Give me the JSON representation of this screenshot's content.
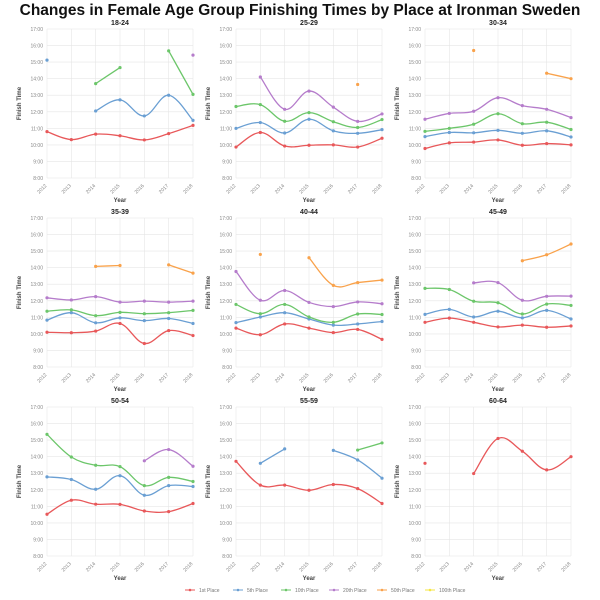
{
  "title": "Changes in Female Age Group Finishing Times by Place at Ironman Sweden",
  "legend": [
    {
      "name": "1st Place",
      "color": "#e8585a"
    },
    {
      "name": "5th Place",
      "color": "#6a9fd3"
    },
    {
      "name": "10th Place",
      "color": "#6cc66a"
    },
    {
      "name": "20th Place",
      "color": "#b57ccb"
    },
    {
      "name": "50th Place",
      "color": "#f9a24b"
    },
    {
      "name": "100th Place",
      "color": "#f5e642"
    }
  ],
  "chart_data": [
    {
      "type": "line",
      "title": "18-24",
      "xlabel": "Year",
      "ylabel": "Finish Time",
      "x": [
        2012,
        2013,
        2014,
        2015,
        2016,
        2017,
        2018
      ],
      "ylim": [
        8,
        17
      ],
      "yticks": [
        "8:00",
        "9:00",
        "10:00",
        "11:00",
        "12:00",
        "13:00",
        "14:00",
        "15:00",
        "16:00",
        "17:00"
      ],
      "series": [
        {
          "name": "1st Place",
          "values": [
            10.8,
            10.32,
            10.65,
            10.55,
            10.3,
            10.68,
            11.18
          ]
        },
        {
          "name": "5th Place",
          "values": [
            15.12,
            null,
            12.05,
            12.72,
            11.75,
            13.0,
            11.48
          ]
        },
        {
          "name": "10th Place",
          "values": [
            null,
            null,
            13.7,
            14.67,
            null,
            15.68,
            13.05
          ]
        },
        {
          "name": "20th Place",
          "values": [
            null,
            null,
            null,
            null,
            null,
            null,
            15.42
          ]
        },
        {
          "name": "50th Place",
          "values": [
            null,
            null,
            null,
            null,
            null,
            null,
            null
          ]
        },
        {
          "name": "100th Place",
          "values": [
            null,
            null,
            null,
            null,
            null,
            null,
            null
          ]
        }
      ]
    },
    {
      "type": "line",
      "title": "25-29",
      "xlabel": "Year",
      "ylabel": "Finish Time",
      "x": [
        2012,
        2013,
        2014,
        2015,
        2016,
        2017,
        2018
      ],
      "ylim": [
        8,
        17
      ],
      "yticks": [
        "8:00",
        "9:00",
        "10:00",
        "11:00",
        "12:00",
        "13:00",
        "14:00",
        "15:00",
        "16:00",
        "17:00"
      ],
      "series": [
        {
          "name": "1st Place",
          "values": [
            9.87,
            10.75,
            9.93,
            9.98,
            10.0,
            9.87,
            10.4
          ]
        },
        {
          "name": "5th Place",
          "values": [
            11.0,
            11.35,
            10.72,
            11.55,
            10.85,
            10.7,
            10.92
          ]
        },
        {
          "name": "10th Place",
          "values": [
            12.32,
            12.43,
            11.43,
            11.95,
            11.4,
            11.05,
            11.53
          ]
        },
        {
          "name": "20th Place",
          "values": [
            null,
            14.1,
            12.15,
            13.25,
            12.28,
            11.42,
            11.87
          ]
        },
        {
          "name": "50th Place",
          "values": [
            null,
            null,
            null,
            null,
            null,
            13.65,
            null
          ]
        },
        {
          "name": "100th Place",
          "values": [
            null,
            null,
            null,
            null,
            null,
            null,
            null
          ]
        }
      ]
    },
    {
      "type": "line",
      "title": "30-34",
      "xlabel": "Year",
      "ylabel": "Finish Time",
      "x": [
        2012,
        2013,
        2014,
        2015,
        2016,
        2017,
        2018
      ],
      "ylim": [
        8,
        17
      ],
      "yticks": [
        "8:00",
        "9:00",
        "10:00",
        "11:00",
        "12:00",
        "13:00",
        "14:00",
        "15:00",
        "16:00",
        "17:00"
      ],
      "series": [
        {
          "name": "1st Place",
          "values": [
            9.78,
            10.12,
            10.17,
            10.3,
            9.98,
            10.08,
            10.0
          ]
        },
        {
          "name": "5th Place",
          "values": [
            10.5,
            10.75,
            10.73,
            10.88,
            10.7,
            10.85,
            10.48
          ]
        },
        {
          "name": "10th Place",
          "values": [
            10.82,
            11.0,
            11.25,
            11.88,
            11.28,
            11.37,
            10.93
          ]
        },
        {
          "name": "20th Place",
          "values": [
            11.55,
            11.9,
            12.03,
            12.85,
            12.37,
            12.15,
            11.65
          ]
        },
        {
          "name": "50th Place",
          "values": [
            null,
            null,
            15.7,
            null,
            null,
            14.33,
            14.0
          ]
        },
        {
          "name": "100th Place",
          "values": [
            null,
            null,
            null,
            null,
            null,
            null,
            null
          ]
        }
      ]
    },
    {
      "type": "line",
      "title": "35-39",
      "xlabel": "Year",
      "ylabel": "Finish Time",
      "x": [
        2012,
        2013,
        2014,
        2015,
        2016,
        2017,
        2018
      ],
      "ylim": [
        8,
        17
      ],
      "yticks": [
        "8:00",
        "9:00",
        "10:00",
        "11:00",
        "12:00",
        "13:00",
        "14:00",
        "15:00",
        "16:00",
        "17:00"
      ],
      "series": [
        {
          "name": "1st Place",
          "values": [
            10.1,
            10.07,
            10.17,
            10.63,
            9.42,
            10.2,
            9.9
          ]
        },
        {
          "name": "5th Place",
          "values": [
            10.83,
            11.28,
            10.67,
            10.97,
            10.8,
            10.93,
            10.63
          ]
        },
        {
          "name": "10th Place",
          "values": [
            11.37,
            11.45,
            11.1,
            11.3,
            11.22,
            11.28,
            11.42
          ]
        },
        {
          "name": "20th Place",
          "values": [
            12.18,
            12.05,
            12.25,
            11.92,
            11.98,
            11.92,
            11.98
          ]
        },
        {
          "name": "50th Place",
          "values": [
            null,
            null,
            14.08,
            14.13,
            null,
            14.17,
            13.67
          ]
        },
        {
          "name": "100th Place",
          "values": [
            null,
            null,
            null,
            null,
            null,
            null,
            null
          ]
        }
      ]
    },
    {
      "type": "line",
      "title": "40-44",
      "xlabel": "Year",
      "ylabel": "Finish Time",
      "x": [
        2012,
        2013,
        2014,
        2015,
        2016,
        2017,
        2018
      ],
      "ylim": [
        8,
        17
      ],
      "yticks": [
        "8:00",
        "9:00",
        "10:00",
        "11:00",
        "12:00",
        "13:00",
        "14:00",
        "15:00",
        "16:00",
        "17:00"
      ],
      "series": [
        {
          "name": "1st Place",
          "values": [
            10.35,
            9.95,
            10.6,
            10.35,
            10.08,
            10.27,
            9.67
          ]
        },
        {
          "name": "5th Place",
          "values": [
            10.68,
            11.02,
            11.28,
            10.9,
            10.53,
            10.6,
            10.75
          ]
        },
        {
          "name": "10th Place",
          "values": [
            11.78,
            11.22,
            11.78,
            11.02,
            10.7,
            11.2,
            11.17
          ]
        },
        {
          "name": "20th Place",
          "values": [
            13.77,
            12.03,
            12.62,
            11.9,
            11.65,
            11.93,
            11.82
          ]
        },
        {
          "name": "50th Place",
          "values": [
            null,
            14.8,
            null,
            14.6,
            12.93,
            13.1,
            13.25
          ]
        },
        {
          "name": "100th Place",
          "values": [
            null,
            null,
            null,
            null,
            null,
            null,
            null
          ]
        }
      ]
    },
    {
      "type": "line",
      "title": "45-49",
      "xlabel": "Year",
      "ylabel": "Finish Time",
      "x": [
        2012,
        2013,
        2014,
        2015,
        2016,
        2017,
        2018
      ],
      "ylim": [
        8,
        17
      ],
      "yticks": [
        "8:00",
        "9:00",
        "10:00",
        "11:00",
        "12:00",
        "13:00",
        "14:00",
        "15:00",
        "16:00",
        "17:00"
      ],
      "series": [
        {
          "name": "1st Place",
          "values": [
            10.7,
            10.95,
            10.7,
            10.42,
            10.53,
            10.4,
            10.48
          ]
        },
        {
          "name": "5th Place",
          "values": [
            11.18,
            11.48,
            11.02,
            11.37,
            10.97,
            11.42,
            10.9
          ]
        },
        {
          "name": "10th Place",
          "values": [
            12.75,
            12.68,
            11.97,
            11.88,
            11.2,
            11.8,
            11.72
          ]
        },
        {
          "name": "20th Place",
          "values": [
            null,
            null,
            13.08,
            13.1,
            12.03,
            12.27,
            12.28
          ]
        },
        {
          "name": "50th Place",
          "values": [
            null,
            null,
            null,
            null,
            14.42,
            14.78,
            15.43
          ]
        },
        {
          "name": "100th Place",
          "values": [
            null,
            null,
            null,
            null,
            null,
            null,
            null
          ]
        }
      ]
    },
    {
      "type": "line",
      "title": "50-54",
      "xlabel": "Year",
      "ylabel": "Finish Time",
      "x": [
        2012,
        2013,
        2014,
        2015,
        2016,
        2017,
        2018
      ],
      "ylim": [
        8,
        17
      ],
      "yticks": [
        "8:00",
        "9:00",
        "10:00",
        "11:00",
        "12:00",
        "13:00",
        "14:00",
        "15:00",
        "16:00",
        "17:00"
      ],
      "series": [
        {
          "name": "1st Place",
          "values": [
            10.52,
            11.37,
            11.13,
            11.12,
            10.72,
            10.68,
            11.17
          ]
        },
        {
          "name": "5th Place",
          "values": [
            12.78,
            12.62,
            12.03,
            12.85,
            11.67,
            12.25,
            12.2
          ]
        },
        {
          "name": "10th Place",
          "values": [
            15.35,
            13.98,
            13.48,
            13.4,
            12.25,
            12.75,
            12.5
          ]
        },
        {
          "name": "20th Place",
          "values": [
            null,
            null,
            null,
            null,
            13.75,
            14.43,
            13.42
          ]
        },
        {
          "name": "50th Place",
          "values": [
            null,
            null,
            null,
            null,
            null,
            null,
            null
          ]
        },
        {
          "name": "100th Place",
          "values": [
            null,
            null,
            null,
            null,
            null,
            null,
            null
          ]
        }
      ]
    },
    {
      "type": "line",
      "title": "55-59",
      "xlabel": "Year",
      "ylabel": "Finish Time",
      "x": [
        2012,
        2013,
        2014,
        2015,
        2016,
        2017,
        2018
      ],
      "ylim": [
        8,
        17
      ],
      "yticks": [
        "8:00",
        "9:00",
        "10:00",
        "11:00",
        "12:00",
        "13:00",
        "14:00",
        "15:00",
        "16:00",
        "17:00"
      ],
      "series": [
        {
          "name": "1st Place",
          "values": [
            13.72,
            12.28,
            12.28,
            11.97,
            12.32,
            12.07,
            11.17
          ]
        },
        {
          "name": "5th Place",
          "values": [
            null,
            13.6,
            14.47,
            null,
            14.38,
            13.8,
            12.7
          ]
        },
        {
          "name": "10th Place",
          "values": [
            null,
            null,
            null,
            null,
            null,
            14.4,
            14.83
          ]
        },
        {
          "name": "20th Place",
          "values": [
            null,
            null,
            null,
            null,
            null,
            null,
            null
          ]
        },
        {
          "name": "50th Place",
          "values": [
            null,
            null,
            null,
            null,
            null,
            null,
            null
          ]
        },
        {
          "name": "100th Place",
          "values": [
            null,
            null,
            null,
            null,
            null,
            null,
            null
          ]
        }
      ]
    },
    {
      "type": "line",
      "title": "60-64",
      "xlabel": "Year",
      "ylabel": "Finish Time",
      "x": [
        2012,
        2013,
        2014,
        2015,
        2016,
        2017,
        2018
      ],
      "ylim": [
        8,
        17
      ],
      "yticks": [
        "8:00",
        "9:00",
        "10:00",
        "11:00",
        "12:00",
        "13:00",
        "14:00",
        "15:00",
        "16:00",
        "17:00"
      ],
      "series": [
        {
          "name": "1st Place",
          "values": [
            13.6,
            null,
            12.98,
            15.1,
            14.33,
            13.2,
            14.0
          ]
        },
        {
          "name": "5th Place",
          "values": [
            null,
            null,
            null,
            null,
            null,
            null,
            null
          ]
        },
        {
          "name": "10th Place",
          "values": [
            null,
            null,
            null,
            null,
            null,
            null,
            null
          ]
        },
        {
          "name": "20th Place",
          "values": [
            null,
            null,
            null,
            null,
            null,
            null,
            null
          ]
        },
        {
          "name": "50th Place",
          "values": [
            null,
            null,
            null,
            null,
            null,
            null,
            null
          ]
        },
        {
          "name": "100th Place",
          "values": [
            null,
            null,
            null,
            null,
            null,
            null,
            null
          ]
        }
      ]
    }
  ]
}
